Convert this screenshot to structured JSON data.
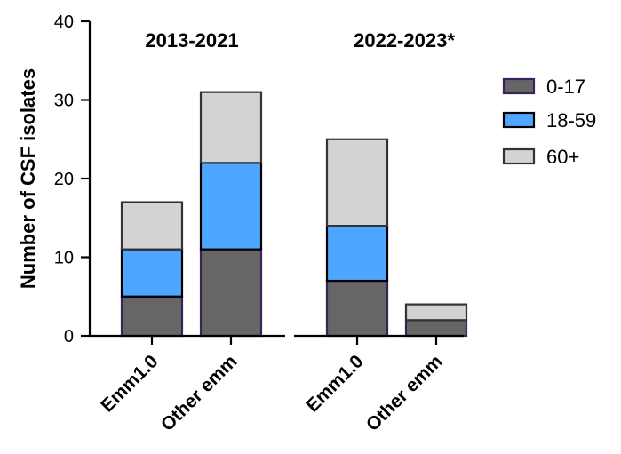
{
  "chart_data": {
    "type": "bar",
    "stacked": true,
    "ylabel": "Number of CSF isolates",
    "ylim": [
      0,
      40
    ],
    "yticks": [
      0,
      10,
      20,
      30,
      40
    ],
    "groups": [
      {
        "title": "2013-2021",
        "categories": [
          "Emm1.0",
          "Other emm"
        ]
      },
      {
        "title": "2022-2023*",
        "categories": [
          "Emm1.0",
          "Other emm"
        ]
      }
    ],
    "categories": [
      "Emm1.0",
      "Other emm",
      "Emm1.0",
      "Other emm"
    ],
    "series": [
      {
        "name": "0-17",
        "color": "#666666",
        "values": [
          5,
          11,
          7,
          2
        ]
      },
      {
        "name": "18-59",
        "color": "#4da6ff",
        "values": [
          6,
          11,
          7,
          0
        ]
      },
      {
        "name": "60+",
        "color": "#d3d3d3",
        "values": [
          6,
          9,
          11,
          2
        ]
      }
    ],
    "legend_position": "right"
  }
}
